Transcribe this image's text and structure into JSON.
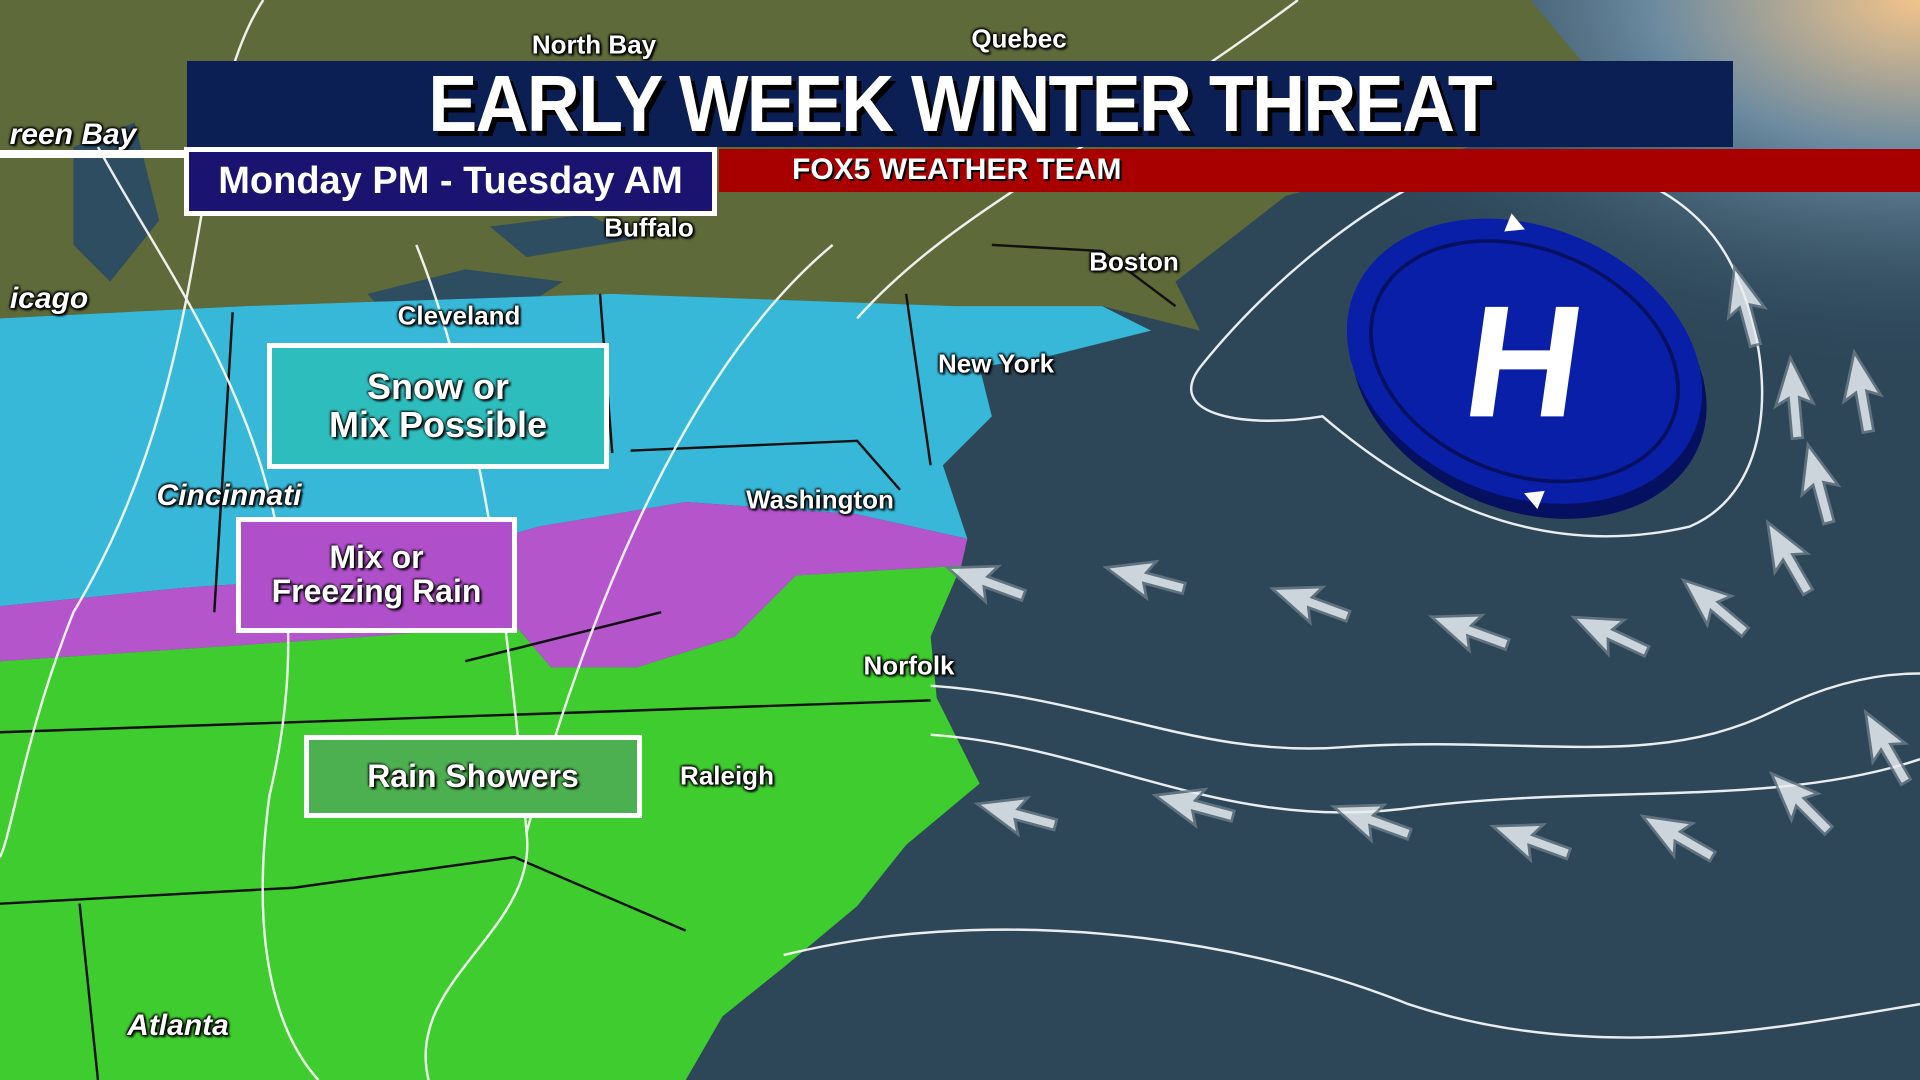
{
  "header": {
    "title": "EARLY WEEK WINTER THREAT",
    "subtitle": "Monday PM - Tuesday AM",
    "team": "FOX5 WEATHER TEAM"
  },
  "legend": {
    "snow": {
      "line1": "Snow or",
      "line2": "Mix Possible",
      "color": "#38b8d8"
    },
    "mix": {
      "line1": "Mix or",
      "line2": "Freezing Rain",
      "color": "#b455cc"
    },
    "rain": {
      "label": "Rain Showers",
      "color": "#3fcc2e"
    }
  },
  "pressure_center": {
    "label": "H",
    "type": "high-pressure",
    "color": "#0a1fa8"
  },
  "cities": {
    "north_bay": "North Bay",
    "quebec": "Quebec",
    "green_bay": "reen Bay",
    "chicago": "icago",
    "buffalo": "Buffalo",
    "cleveland": "Cleveland",
    "boston": "Boston",
    "new_york": "New York",
    "cincinnati": "Cincinnati",
    "washington": "Washington",
    "norfolk": "Norfolk",
    "raleigh": "Raleigh",
    "atlanta": "Atlanta"
  },
  "wind": {
    "direction": "east-northeast onshore flow",
    "icon": "wind-arrow-icon"
  }
}
